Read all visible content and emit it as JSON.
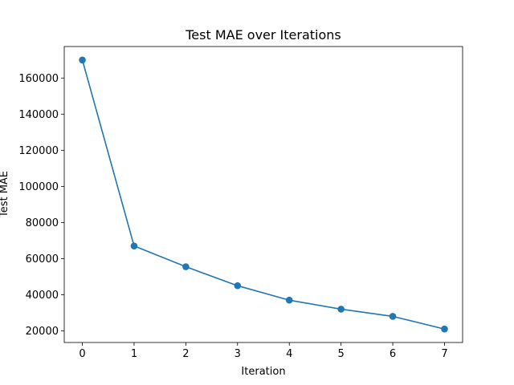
{
  "chart_data": {
    "type": "line",
    "title": "Test MAE over Iterations",
    "xlabel": "Iteration",
    "ylabel": "Test MAE",
    "x": [
      0,
      1,
      2,
      3,
      4,
      5,
      6,
      7
    ],
    "series": [
      {
        "values": [
          170000,
          67000,
          55500,
          45000,
          37000,
          32000,
          28000,
          21000
        ],
        "color": "#1f77b4",
        "marker": "circle"
      }
    ],
    "xticks": [
      "0",
      "1",
      "2",
      "3",
      "4",
      "5",
      "6",
      "7"
    ],
    "yticks": [
      "20000",
      "40000",
      "60000",
      "80000",
      "100000",
      "120000",
      "140000",
      "160000"
    ],
    "xlim": [
      -0.35,
      7.35
    ],
    "ylim": [
      13550,
      177450
    ],
    "grid": false,
    "legend": "none"
  }
}
